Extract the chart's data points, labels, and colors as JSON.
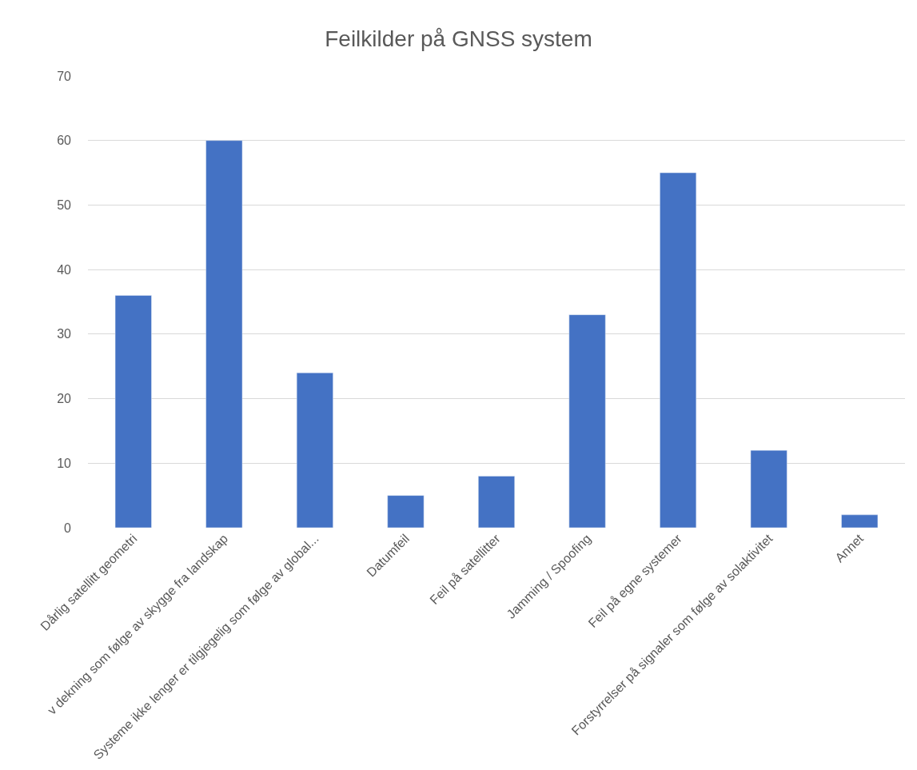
{
  "chart_data": {
    "type": "bar",
    "title": "Feilkilder på GNSS system",
    "categories": [
      "Dårlig satellitt geometri",
      "v dekning som følge av skygge fra landskap",
      "Systeme ikke lenger er tilgjegelig som følge av global...",
      "Datumfeil",
      "Feil på satellitter",
      "Jamming / Spoofing",
      "Feil på egne systemer",
      "Forstyrrelser på signaler som følge av solaktivitet",
      "Annet"
    ],
    "values": [
      36,
      60,
      24,
      5,
      8,
      33,
      55,
      12,
      2
    ],
    "color": "#4472c4",
    "ylim": [
      0,
      70
    ],
    "yticks": [
      0,
      10,
      20,
      30,
      40,
      50,
      60,
      70
    ],
    "grid": "y"
  }
}
